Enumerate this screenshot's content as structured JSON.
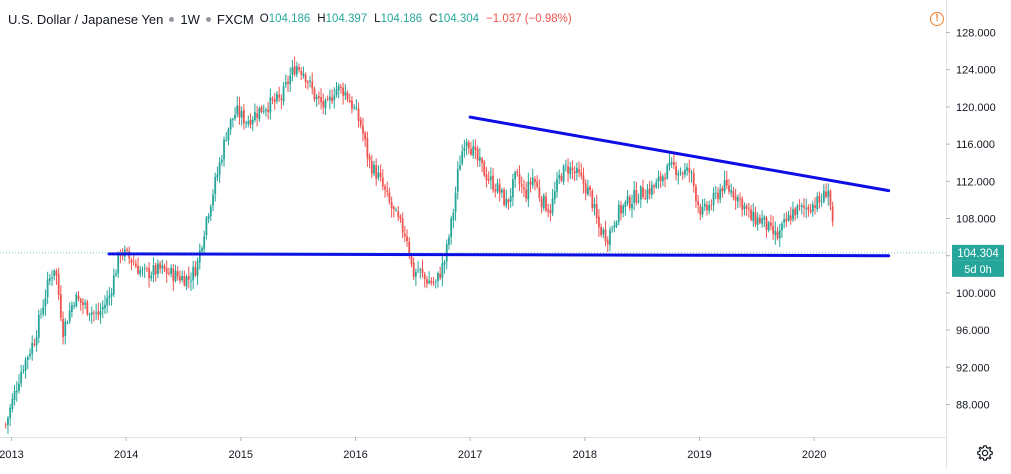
{
  "header": {
    "title": "U.S. Dollar / Japanese Yen",
    "interval": "1W",
    "exchange": "FXCM",
    "open_label": "O",
    "open_value": "104.186",
    "high_label": "H",
    "high_value": "104.397",
    "low_label": "L",
    "low_value": "104.186",
    "close_label": "C",
    "close_value": "104.304",
    "change": "−1.037 (−0.98%)"
  },
  "price_badge": {
    "value": "104.304",
    "countdown": "5d 0h"
  },
  "colors": {
    "up": "#26a69a",
    "down": "#ef5350",
    "trendline": "#0d0de6",
    "badge": "#26a69a",
    "warning": "#f4822b"
  },
  "icons": {
    "warning": "warning-icon",
    "settings": "gear-icon"
  },
  "chart_data": {
    "type": "candlestick",
    "interval": "weekly",
    "ylim": [
      84.5,
      131.5
    ],
    "xlim": [
      2012.9,
      2021.15
    ],
    "y_ticks": [
      "128.000",
      "124.000",
      "120.000",
      "116.000",
      "112.000",
      "108.000",
      "104.000",
      "100.000",
      "96.000",
      "92.000",
      "88.000"
    ],
    "x_ticks": [
      "2013",
      "2014",
      "2015",
      "2016",
      "2017",
      "2018",
      "2019",
      "2020"
    ],
    "anchors": [
      [
        2012.95,
        85.8
      ],
      [
        2013.0,
        88.0
      ],
      [
        2013.08,
        91.5
      ],
      [
        2013.2,
        95.0
      ],
      [
        2013.32,
        101.0
      ],
      [
        2013.38,
        103.0
      ],
      [
        2013.45,
        96.0
      ],
      [
        2013.55,
        99.5
      ],
      [
        2013.65,
        98.5
      ],
      [
        2013.75,
        97.5
      ],
      [
        2013.85,
        99.5
      ],
      [
        2013.95,
        104.5
      ],
      [
        2014.05,
        103.5
      ],
      [
        2014.15,
        102.0
      ],
      [
        2014.3,
        102.5
      ],
      [
        2014.45,
        101.8
      ],
      [
        2014.55,
        101.5
      ],
      [
        2014.62,
        103.0
      ],
      [
        2014.7,
        108.0
      ],
      [
        2014.8,
        113.0
      ],
      [
        2014.88,
        117.5
      ],
      [
        2014.96,
        119.5
      ],
      [
        2015.05,
        118.5
      ],
      [
        2015.2,
        120.0
      ],
      [
        2015.35,
        120.8
      ],
      [
        2015.42,
        123.0
      ],
      [
        2015.48,
        124.5
      ],
      [
        2015.55,
        123.8
      ],
      [
        2015.65,
        121.0
      ],
      [
        2015.75,
        119.8
      ],
      [
        2015.82,
        122.0
      ],
      [
        2015.9,
        121.8
      ],
      [
        2015.96,
        120.5
      ],
      [
        2016.05,
        118.0
      ],
      [
        2016.12,
        114.0
      ],
      [
        2016.2,
        112.5
      ],
      [
        2016.3,
        109.5
      ],
      [
        2016.38,
        107.5
      ],
      [
        2016.45,
        106.0
      ],
      [
        2016.5,
        102.0
      ],
      [
        2016.55,
        102.5
      ],
      [
        2016.6,
        101.5
      ],
      [
        2016.7,
        101.0
      ],
      [
        2016.78,
        103.5
      ],
      [
        2016.85,
        108.5
      ],
      [
        2016.9,
        113.5
      ],
      [
        2016.96,
        117.0
      ],
      [
        2017.05,
        114.5
      ],
      [
        2017.15,
        112.5
      ],
      [
        2017.25,
        111.0
      ],
      [
        2017.32,
        109.5
      ],
      [
        2017.4,
        112.5
      ],
      [
        2017.48,
        110.5
      ],
      [
        2017.55,
        112.5
      ],
      [
        2017.62,
        110.0
      ],
      [
        2017.7,
        109.0
      ],
      [
        2017.78,
        112.5
      ],
      [
        2017.85,
        113.5
      ],
      [
        2017.95,
        112.5
      ],
      [
        2018.05,
        110.5
      ],
      [
        2018.12,
        107.0
      ],
      [
        2018.2,
        106.0
      ],
      [
        2018.28,
        108.5
      ],
      [
        2018.36,
        109.5
      ],
      [
        2018.45,
        110.5
      ],
      [
        2018.55,
        111.0
      ],
      [
        2018.62,
        111.5
      ],
      [
        2018.7,
        113.0
      ],
      [
        2018.78,
        113.5
      ],
      [
        2018.85,
        113.0
      ],
      [
        2018.92,
        113.0
      ],
      [
        2018.98,
        110.0
      ],
      [
        2019.02,
        108.5
      ],
      [
        2019.1,
        109.5
      ],
      [
        2019.2,
        111.5
      ],
      [
        2019.3,
        110.8
      ],
      [
        2019.38,
        109.5
      ],
      [
        2019.45,
        108.0
      ],
      [
        2019.55,
        107.8
      ],
      [
        2019.62,
        106.5
      ],
      [
        2019.68,
        106.0
      ],
      [
        2019.75,
        107.5
      ],
      [
        2019.82,
        108.8
      ],
      [
        2019.9,
        109.0
      ],
      [
        2019.98,
        109.5
      ],
      [
        2020.05,
        109.8
      ],
      [
        2020.09,
        110.5
      ],
      [
        2020.12,
        111.5
      ],
      [
        2020.15,
        108.5
      ],
      [
        2020.18,
        104.3
      ]
    ],
    "trendlines": [
      {
        "name": "resistance",
        "points": [
          [
            2017.0,
            118.9
          ],
          [
            2020.65,
            111.0
          ]
        ]
      },
      {
        "name": "support",
        "points": [
          [
            2013.85,
            104.2
          ],
          [
            2020.65,
            104.0
          ]
        ]
      }
    ]
  }
}
